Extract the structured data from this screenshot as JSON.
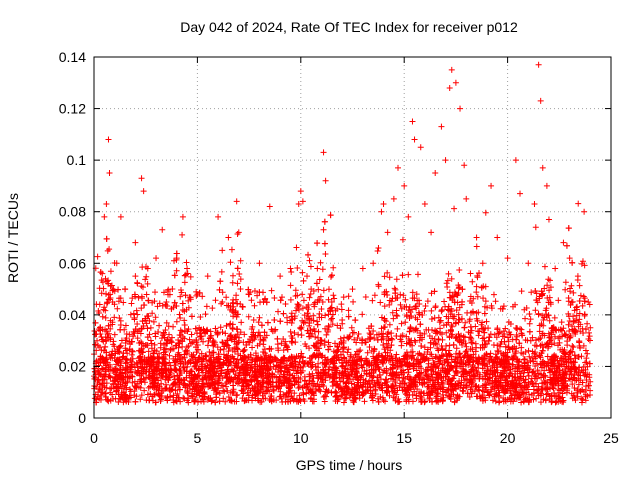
{
  "chart_data": {
    "type": "scatter",
    "title": "Day 042 of 2024, Rate Of TEC Index for receiver p012",
    "xlabel": "GPS time / hours",
    "ylabel": "ROTI / TECUs",
    "xlim": [
      0,
      25
    ],
    "ylim": [
      0,
      0.14
    ],
    "x_ticks": [
      0,
      5,
      10,
      15,
      20,
      25
    ],
    "y_ticks": [
      0,
      0.02,
      0.04,
      0.06,
      0.08,
      0.1,
      0.12,
      0.14
    ],
    "x_tick_labels": [
      "0",
      "5",
      "10",
      "15",
      "20",
      "25"
    ],
    "y_tick_labels": [
      "0",
      "0.02",
      "0.04",
      "0.06",
      "0.08",
      "0.1",
      "0.12",
      "0.14"
    ],
    "grid": true,
    "marker": "+",
    "color": "#ff0000",
    "series": [
      {
        "points": [
          [
            0.1,
            0.012
          ],
          [
            0.2,
            0.028
          ],
          [
            0.3,
            0.035
          ],
          [
            0.4,
            0.056
          ],
          [
            0.5,
            0.078
          ],
          [
            0.6,
            0.083
          ],
          [
            0.7,
            0.108
          ],
          [
            0.75,
            0.095
          ],
          [
            0.9,
            0.045
          ],
          [
            1.1,
            0.06
          ],
          [
            1.3,
            0.078
          ],
          [
            1.5,
            0.05
          ],
          [
            2.0,
            0.068
          ],
          [
            2.3,
            0.093
          ],
          [
            2.4,
            0.088
          ],
          [
            2.6,
            0.058
          ],
          [
            3.0,
            0.062
          ],
          [
            3.3,
            0.073
          ],
          [
            3.5,
            0.045
          ],
          [
            4.0,
            0.062
          ],
          [
            4.3,
            0.078
          ],
          [
            4.5,
            0.058
          ],
          [
            5.0,
            0.048
          ],
          [
            5.5,
            0.055
          ],
          [
            6.0,
            0.078
          ],
          [
            6.2,
            0.065
          ],
          [
            6.5,
            0.07
          ],
          [
            6.9,
            0.084
          ],
          [
            7.0,
            0.072
          ],
          [
            7.5,
            0.048
          ],
          [
            8.0,
            0.06
          ],
          [
            8.5,
            0.082
          ],
          [
            9.0,
            0.055
          ],
          [
            9.5,
            0.058
          ],
          [
            9.9,
            0.083
          ],
          [
            10.0,
            0.088
          ],
          [
            10.1,
            0.084
          ],
          [
            10.3,
            0.055
          ],
          [
            10.5,
            0.05
          ],
          [
            10.8,
            0.058
          ],
          [
            11.1,
            0.103
          ],
          [
            11.2,
            0.092
          ],
          [
            11.1,
            0.073
          ],
          [
            11.5,
            0.045
          ],
          [
            12.0,
            0.038
          ],
          [
            12.5,
            0.05
          ],
          [
            13.0,
            0.058
          ],
          [
            13.5,
            0.06
          ],
          [
            13.9,
            0.08
          ],
          [
            14.0,
            0.083
          ],
          [
            14.2,
            0.072
          ],
          [
            14.5,
            0.085
          ],
          [
            14.7,
            0.097
          ],
          [
            15.0,
            0.09
          ],
          [
            15.2,
            0.078
          ],
          [
            15.4,
            0.115
          ],
          [
            15.5,
            0.108
          ],
          [
            15.8,
            0.105
          ],
          [
            16.0,
            0.083
          ],
          [
            16.3,
            0.072
          ],
          [
            16.5,
            0.095
          ],
          [
            16.8,
            0.113
          ],
          [
            17.0,
            0.1
          ],
          [
            17.2,
            0.128
          ],
          [
            17.3,
            0.135
          ],
          [
            17.5,
            0.13
          ],
          [
            17.7,
            0.12
          ],
          [
            17.9,
            0.098
          ],
          [
            18.0,
            0.085
          ],
          [
            18.5,
            0.07
          ],
          [
            18.8,
            0.06
          ],
          [
            19.2,
            0.09
          ],
          [
            19.5,
            0.07
          ],
          [
            20.0,
            0.062
          ],
          [
            20.4,
            0.1
          ],
          [
            20.6,
            0.087
          ],
          [
            21.0,
            0.06
          ],
          [
            21.3,
            0.083
          ],
          [
            21.5,
            0.137
          ],
          [
            21.6,
            0.123
          ],
          [
            21.7,
            0.097
          ],
          [
            21.9,
            0.09
          ],
          [
            22.0,
            0.077
          ],
          [
            22.3,
            0.058
          ],
          [
            22.7,
            0.068
          ],
          [
            23.0,
            0.062
          ],
          [
            23.4,
            0.055
          ],
          [
            23.7,
            0.08
          ],
          [
            23.9,
            0.045
          ],
          [
            24.0,
            0.035
          ]
        ]
      }
    ]
  }
}
